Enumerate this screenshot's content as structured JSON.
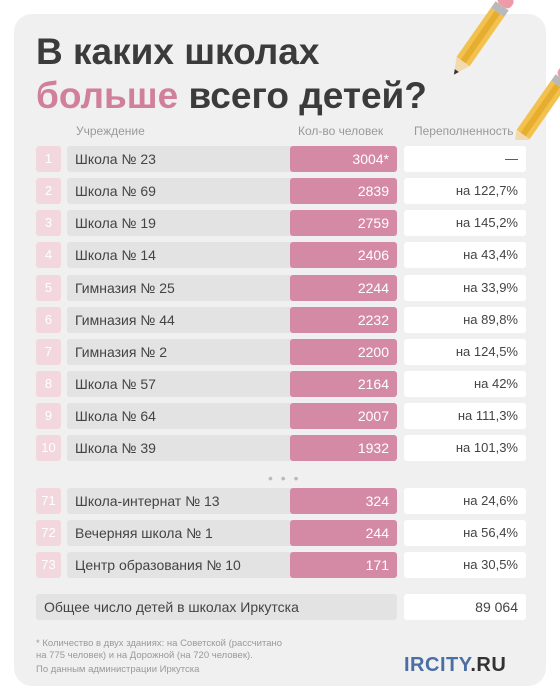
{
  "title_line1": "В каких школах",
  "title_accent": "больше",
  "title_rest": "всего детей?",
  "headers": {
    "institution": "Учреждение",
    "count": "Кол-во человек",
    "overcrowding": "Переполненность"
  },
  "chart_data": {
    "type": "table",
    "columns": [
      "Учреждение",
      "Кол-во человек",
      "Переполненность"
    ],
    "rows": [
      {
        "rank": "1",
        "name": "Школа № 23",
        "count": 3004,
        "count_label": "3004*",
        "over": "—"
      },
      {
        "rank": "2",
        "name": "Школа № 69",
        "count": 2839,
        "count_label": "2839",
        "over": "на 122,7%"
      },
      {
        "rank": "3",
        "name": "Школа № 19",
        "count": 2759,
        "count_label": "2759",
        "over": "на 145,2%"
      },
      {
        "rank": "4",
        "name": "Школа № 14",
        "count": 2406,
        "count_label": "2406",
        "over": "на 43,4%"
      },
      {
        "rank": "5",
        "name": "Гимназия № 25",
        "count": 2244,
        "count_label": "2244",
        "over": "на 33,9%"
      },
      {
        "rank": "6",
        "name": "Гимназия № 44",
        "count": 2232,
        "count_label": "2232",
        "over": "на 89,8%"
      },
      {
        "rank": "7",
        "name": "Гимназия № 2",
        "count": 2200,
        "count_label": "2200",
        "over": "на 124,5%"
      },
      {
        "rank": "8",
        "name": "Школа № 57",
        "count": 2164,
        "count_label": "2164",
        "over": "на 42%"
      },
      {
        "rank": "9",
        "name": "Школа № 64",
        "count": 2007,
        "count_label": "2007",
        "over": "на 111,3%"
      },
      {
        "rank": "10",
        "name": "Школа № 39",
        "count": 1932,
        "count_label": "1932",
        "over": "на 101,3%"
      },
      {
        "rank": "71",
        "name": "Школа-интернат № 13",
        "count": 324,
        "count_label": "324",
        "over": "на 24,6%"
      },
      {
        "rank": "72",
        "name": "Вечерняя школа № 1",
        "count": 244,
        "count_label": "244",
        "over": "на 56,4%"
      },
      {
        "rank": "73",
        "name": "Центр образования № 10",
        "count": 171,
        "count_label": "171",
        "over": "на 30,5%"
      }
    ]
  },
  "dots": "• • •",
  "total": {
    "label": "Общее число детей в школах Иркутска",
    "value": "89 064"
  },
  "footnote_line1": "* Количество в двух зданиях: на Советской (рассчитано",
  "footnote_line2": "на 775 человек) и на Дорожной (на 720 человек).",
  "source": "По данным администрации Иркутска",
  "logo_part1": "IRCITY",
  "logo_part2": ".RU",
  "colors": {
    "accent": "#d0809a",
    "bar": "#d48aa4",
    "rank_bg": "#f3d7df"
  }
}
